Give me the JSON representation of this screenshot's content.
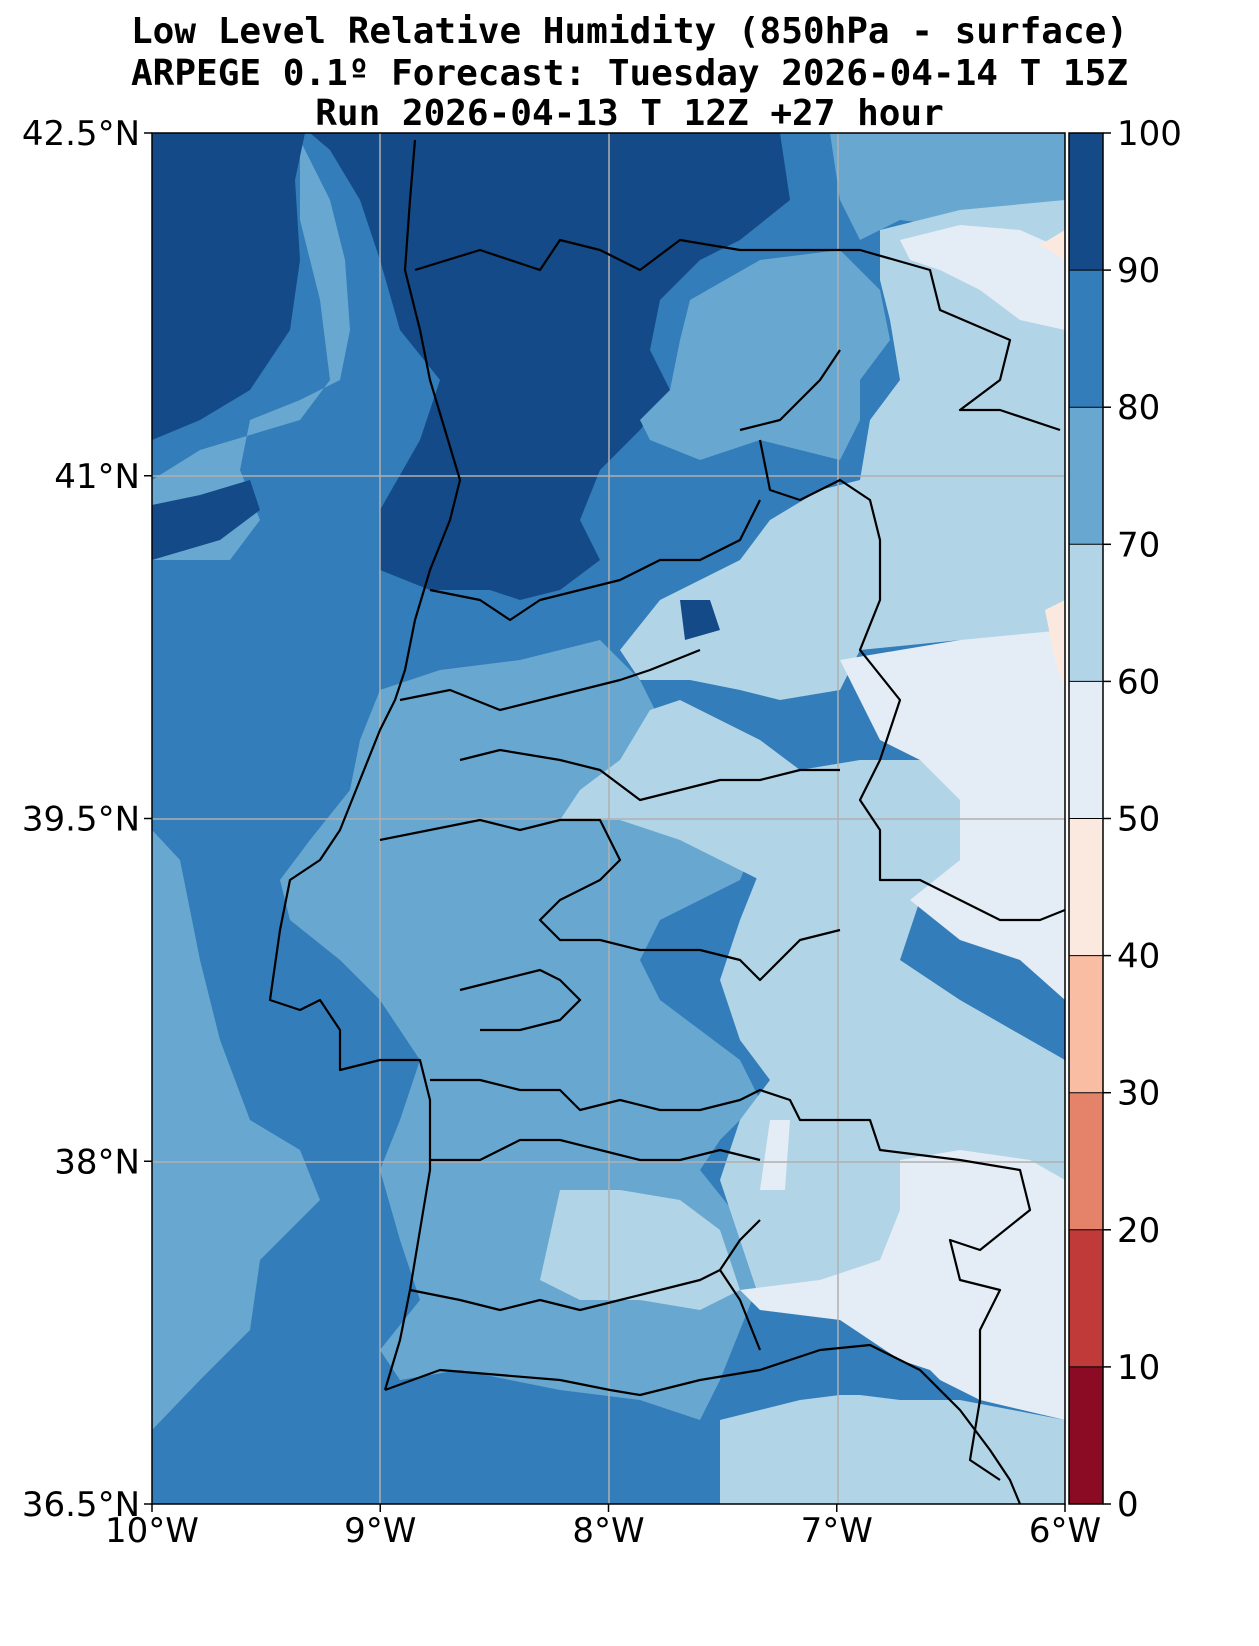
{
  "title": {
    "line1": "Low Level Relative Humidity (850hPa - surface)",
    "line2": "ARPEGE 0.1º Forecast: Tuesday 2026-04-14 T 15Z",
    "line3": "Run 2026-04-13 T 12Z +27 hour"
  },
  "map": {
    "lon_range": [
      -10,
      -6
    ],
    "lat_range": [
      36.5,
      42.5
    ],
    "x_ticks": [
      {
        "value": -10,
        "label": "10°W"
      },
      {
        "value": -9,
        "label": "9°W"
      },
      {
        "value": -8,
        "label": "8°W"
      },
      {
        "value": -7,
        "label": "7°W"
      },
      {
        "value": -6,
        "label": "6°W"
      }
    ],
    "y_ticks": [
      {
        "value": 42.5,
        "label": "42.5°N"
      },
      {
        "value": 41,
        "label": "41°N"
      },
      {
        "value": 39.5,
        "label": "39.5°N"
      },
      {
        "value": 38,
        "label": "38°N"
      },
      {
        "value": 36.5,
        "label": "36.5°N"
      }
    ]
  },
  "colorbar": {
    "levels": [
      {
        "lo": 0,
        "hi": 10,
        "color": "#8b0a24"
      },
      {
        "lo": 10,
        "hi": 20,
        "color": "#c13a3a"
      },
      {
        "lo": 20,
        "hi": 30,
        "color": "#e4826a"
      },
      {
        "lo": 30,
        "hi": 40,
        "color": "#f8bda3"
      },
      {
        "lo": 40,
        "hi": 50,
        "color": "#fbe9e0"
      },
      {
        "lo": 50,
        "hi": 60,
        "color": "#e4edf5"
      },
      {
        "lo": 60,
        "hi": 70,
        "color": "#b2d4e7"
      },
      {
        "lo": 70,
        "hi": 80,
        "color": "#68a8d0"
      },
      {
        "lo": 80,
        "hi": 90,
        "color": "#327dba"
      },
      {
        "lo": 90,
        "hi": 100,
        "color": "#134a87"
      }
    ],
    "tick_labels": [
      "0",
      "10",
      "20",
      "30",
      "40",
      "50",
      "60",
      "70",
      "80",
      "90",
      "100"
    ]
  }
}
